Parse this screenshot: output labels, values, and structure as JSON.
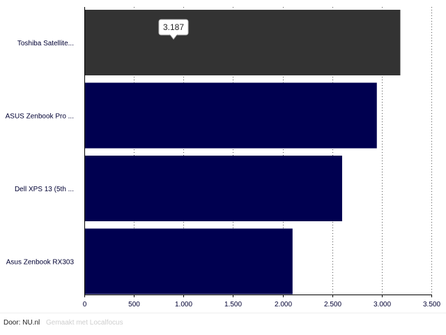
{
  "chart_data": {
    "type": "bar",
    "orientation": "horizontal",
    "categories": [
      "Toshiba Satellite...",
      "ASUS Zenbook Pro ...",
      "Dell XPS 13 (5th ...",
      "Asus Zenbook RX303"
    ],
    "values": [
      3187,
      2950,
      2600,
      2100
    ],
    "xlim": [
      0,
      3500
    ],
    "xticks": [
      0,
      500,
      1000,
      1500,
      2000,
      2500,
      3000,
      3500
    ],
    "xtick_labels": [
      "0",
      "500",
      "1.000",
      "1.500",
      "2.000",
      "2.500",
      "3.000",
      "3.500"
    ],
    "grid": "vertical-dotted",
    "highlighted_index": 0,
    "tooltip": {
      "category_index": 0,
      "text": "3.187"
    },
    "colors": {
      "bar": "#000050",
      "highlight": "#333333",
      "label": "#000033"
    }
  },
  "footer": {
    "author": "Door: NU.nl",
    "credit": "Gemaakt met Localfocus"
  }
}
